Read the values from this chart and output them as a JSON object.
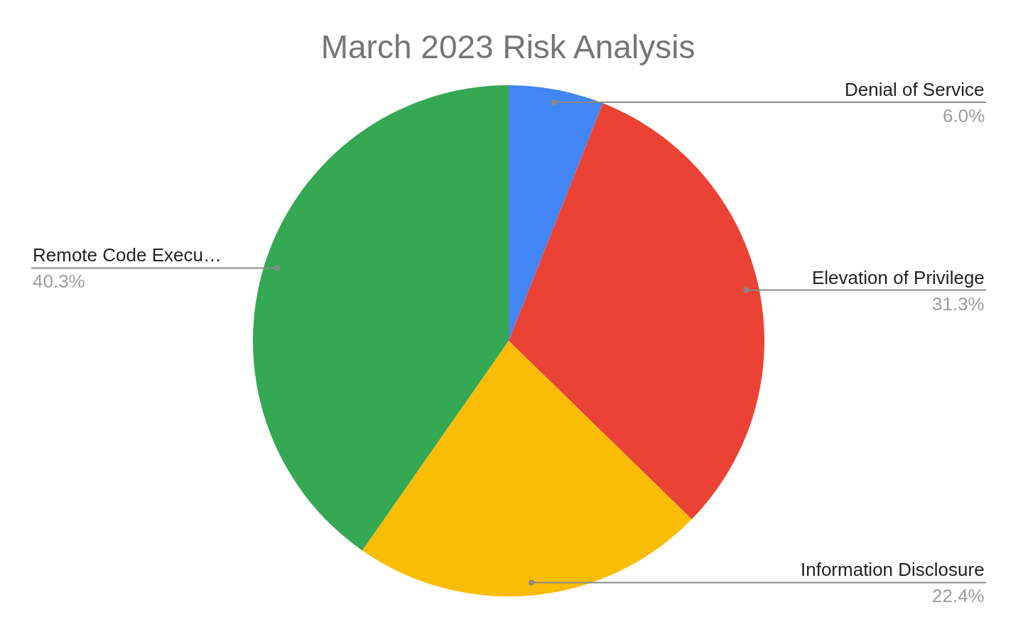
{
  "chart_data": {
    "type": "pie",
    "title": "March 2023 Risk Analysis",
    "categories": [
      "Denial of Service",
      "Elevation of Privilege",
      "Information Disclosure",
      "Remote Code Execu…"
    ],
    "values": [
      6.0,
      31.3,
      22.4,
      40.3
    ],
    "colors": [
      "#4285f4",
      "#ea4335",
      "#fbbc04",
      "#34a853"
    ],
    "value_labels": [
      "6.0%",
      "31.3%",
      "22.4%",
      "40.3%"
    ]
  }
}
